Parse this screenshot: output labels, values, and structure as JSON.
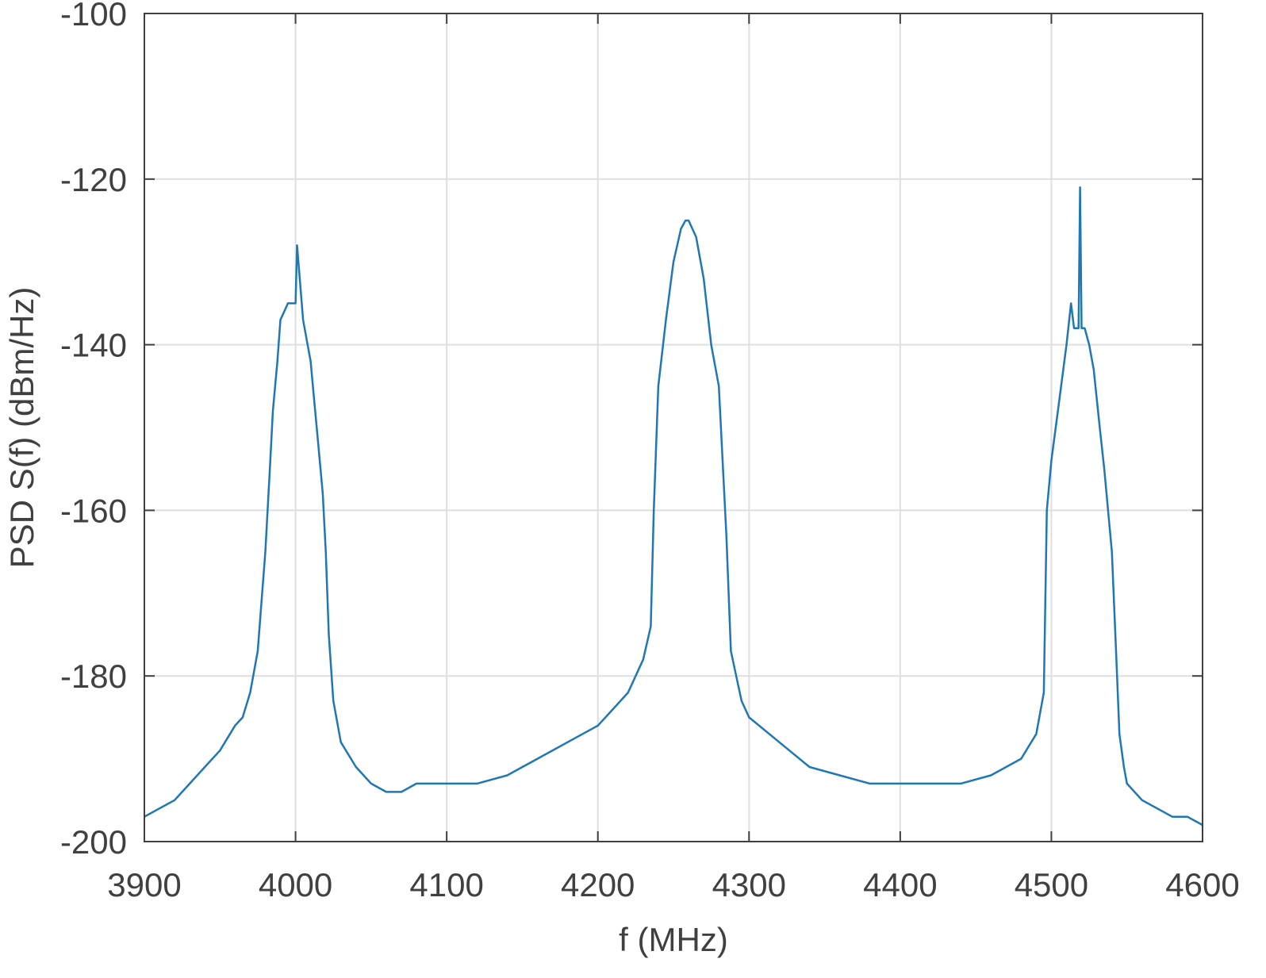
{
  "chart_data": {
    "type": "line",
    "title": "",
    "xlabel": "f (MHz)",
    "ylabel": "PSD S(f)  (dBm/Hz)",
    "xlim": [
      3900,
      4600
    ],
    "ylim": [
      -200,
      -100
    ],
    "xticks": [
      3900,
      4000,
      4100,
      4200,
      4300,
      4400,
      4500,
      4600
    ],
    "yticks": [
      -200,
      -180,
      -160,
      -140,
      -120,
      -100
    ],
    "xtick_labels": [
      "3900",
      "4000",
      "4100",
      "4200",
      "4300",
      "4400",
      "4500",
      "4600"
    ],
    "ytick_labels": [
      "-200",
      "-180",
      "-160",
      "-140",
      "-120",
      "-100"
    ],
    "grid": true,
    "series": [
      {
        "color": "#1f77b4",
        "x": [
          3900,
          3910,
          3920,
          3930,
          3940,
          3950,
          3960,
          3965,
          3970,
          3975,
          3980,
          3983,
          3985,
          3988,
          3990,
          3995,
          4000,
          4001,
          4005,
          4010,
          4012,
          4015,
          4018,
          4020,
          4022,
          4025,
          4030,
          4040,
          4050,
          4060,
          4070,
          4080,
          4100,
          4120,
          4140,
          4160,
          4180,
          4200,
          4210,
          4220,
          4230,
          4235,
          4237,
          4240,
          4245,
          4250,
          4255,
          4258,
          4260,
          4265,
          4270,
          4275,
          4280,
          4285,
          4288,
          4295,
          4300,
          4320,
          4340,
          4360,
          4380,
          4400,
          4420,
          4440,
          4460,
          4480,
          4490,
          4495,
          4497,
          4500,
          4505,
          4510,
          4513,
          4515,
          4518,
          4519,
          4520,
          4522,
          4525,
          4528,
          4532,
          4535,
          4540,
          4543,
          4545,
          4548,
          4550,
          4560,
          4570,
          4580,
          4590,
          4600
        ],
        "y": [
          -197,
          -196,
          -195,
          -193,
          -191,
          -189,
          -186,
          -185,
          -182,
          -177,
          -165,
          -155,
          -148,
          -142,
          -137,
          -135,
          -135,
          -128,
          -137,
          -142,
          -146,
          -152,
          -158,
          -165,
          -175,
          -183,
          -188,
          -191,
          -193,
          -194,
          -194,
          -193,
          -193,
          -193,
          -192,
          -190,
          -188,
          -186,
          -184,
          -182,
          -178,
          -174,
          -160,
          -145,
          -137,
          -130,
          -126,
          -125,
          -125,
          -127,
          -132,
          -140,
          -145,
          -163,
          -177,
          -183,
          -185,
          -188,
          -191,
          -192,
          -193,
          -193,
          -193,
          -193,
          -192,
          -190,
          -187,
          -182,
          -160,
          -154,
          -147,
          -140,
          -135,
          -138,
          -138,
          -121,
          -138,
          -138,
          -140,
          -143,
          -150,
          -155,
          -165,
          -178,
          -187,
          -191,
          -193,
          -195,
          -196,
          -197,
          -197,
          -198
        ]
      }
    ]
  }
}
